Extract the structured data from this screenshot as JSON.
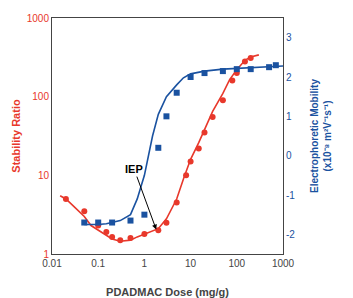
{
  "chart_data": {
    "type": "line",
    "log": true,
    "grid": false,
    "xlabel": "PDADMAC Dose (mg/g)",
    "ylabel": "Stability Ratio",
    "y2label": "Electrophoretic Mobility\n(x10⁻⁸ m²V⁻¹s⁻¹)",
    "xlim": [
      0.01,
      1000
    ],
    "xticks": [
      0.01,
      0.1,
      1,
      10,
      100,
      1000
    ],
    "ylim": [
      1,
      1000
    ],
    "yticks": [
      1,
      10,
      100,
      1000
    ],
    "y2lim": [
      -2.5,
      3.5
    ],
    "y2ticks": [
      -2,
      -1,
      0,
      1,
      2,
      3
    ],
    "series": [
      {
        "type": "line",
        "color": "#e8382b",
        "x": [
          0.015,
          0.02,
          0.03,
          0.05,
          0.07,
          0.1,
          0.15,
          0.2,
          0.3,
          0.5,
          0.7,
          1.0,
          1.5,
          2.0,
          3.0,
          5.0,
          7.0,
          10.0,
          15.0,
          20.0,
          30.0,
          50.0,
          70.0,
          100.0,
          150.0,
          200.0,
          300.0
        ],
        "values": [
          5.5,
          5.0,
          4.0,
          3.0,
          2.3,
          2.0,
          1.7,
          1.55,
          1.45,
          1.5,
          1.65,
          1.8,
          1.95,
          2.1,
          2.8,
          5.0,
          9.0,
          16.0,
          26.0,
          38.0,
          65.0,
          110.0,
          165.0,
          220.0,
          290.0,
          320.0,
          340.0
        ]
      },
      {
        "type": "scatter",
        "marker": "circle",
        "color": "#e8382b",
        "x": [
          0.02,
          0.05,
          0.1,
          0.15,
          0.2,
          0.3,
          0.5,
          1.0,
          2.0,
          3.0,
          5.0,
          8.0,
          10.0,
          15.0,
          20.0,
          30.0,
          50.0,
          80.0,
          100.0,
          150.0,
          200.0
        ],
        "values": [
          5.0,
          3.5,
          2.3,
          1.9,
          1.65,
          1.5,
          1.6,
          1.8,
          2.0,
          2.5,
          4.5,
          10.0,
          15.0,
          22.0,
          35.0,
          55.0,
          90.0,
          160.0,
          200.0,
          280.0,
          310.0
        ]
      },
      {
        "type": "line",
        "axis": "y2",
        "color": "#1a52a0",
        "x": [
          0.05,
          0.07,
          0.1,
          0.15,
          0.2,
          0.3,
          0.5,
          0.7,
          1.0,
          1.5,
          2.0,
          3.0,
          5.0,
          7.0,
          10.0,
          20.0,
          50.0,
          100.0,
          200.0,
          500.0,
          1000.0
        ],
        "values": [
          -1.75,
          -1.75,
          -1.75,
          -1.73,
          -1.7,
          -1.65,
          -1.5,
          -1.1,
          -0.5,
          0.5,
          1.05,
          1.5,
          1.8,
          1.98,
          2.08,
          2.15,
          2.2,
          2.22,
          2.24,
          2.26,
          2.28
        ]
      },
      {
        "type": "scatter",
        "marker": "square",
        "axis": "y2",
        "color": "#1a52a0",
        "x": [
          0.05,
          0.1,
          0.2,
          0.5,
          1.0,
          2.0,
          3.0,
          5.0,
          10.0,
          20.0,
          50.0,
          100.0,
          200.0,
          500.0,
          700.0
        ],
        "values": [
          -1.7,
          -1.7,
          -1.7,
          -1.65,
          -1.5,
          0.2,
          1.0,
          1.6,
          2.0,
          2.1,
          2.15,
          2.2,
          2.2,
          2.25,
          2.3
        ]
      }
    ],
    "annotations": [
      {
        "text": "IEP",
        "x": 1.8,
        "y": 2.05,
        "text_x": 0.6,
        "text_y": 12.0
      }
    ]
  }
}
